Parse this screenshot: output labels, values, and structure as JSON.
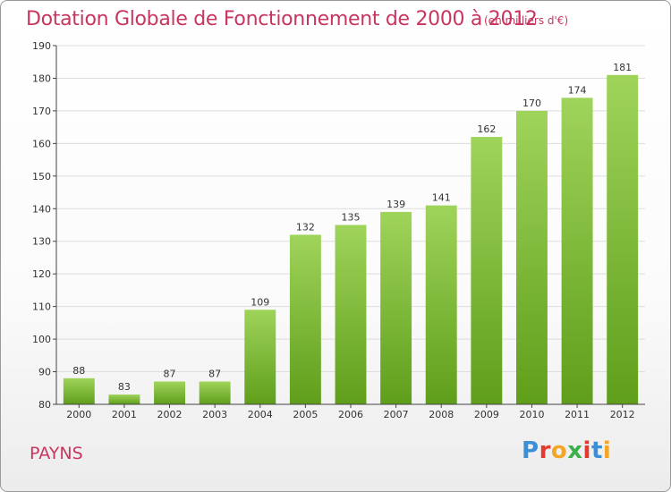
{
  "header": {
    "title": "Dotation Globale de Fonctionnement de 2000 à 2012",
    "unit": "(en milliers d'€)"
  },
  "footer": {
    "commune": "PAYNS",
    "logo_text": "Proxiti",
    "logo_colors": [
      "#3a8fd6",
      "#e23a2c",
      "#f5a524",
      "#3bb04a",
      "#e23a2c",
      "#3a8fd6",
      "#f5a524"
    ]
  },
  "chart_data": {
    "type": "bar",
    "title": "Dotation Globale de Fonctionnement de 2000 à 2012",
    "xlabel": "",
    "ylabel": "",
    "categories": [
      "2000",
      "2001",
      "2002",
      "2003",
      "2004",
      "2005",
      "2006",
      "2007",
      "2008",
      "2009",
      "2010",
      "2011",
      "2012"
    ],
    "values": [
      88,
      83,
      87,
      87,
      109,
      132,
      135,
      139,
      141,
      162,
      170,
      174,
      181
    ],
    "ylim": [
      80,
      190
    ],
    "yticks": [
      80,
      90,
      100,
      110,
      120,
      130,
      140,
      150,
      160,
      170,
      180,
      190
    ],
    "grid": true,
    "bar_color_top": "#9fd45a",
    "bar_color_bottom": "#5f9e1b"
  }
}
